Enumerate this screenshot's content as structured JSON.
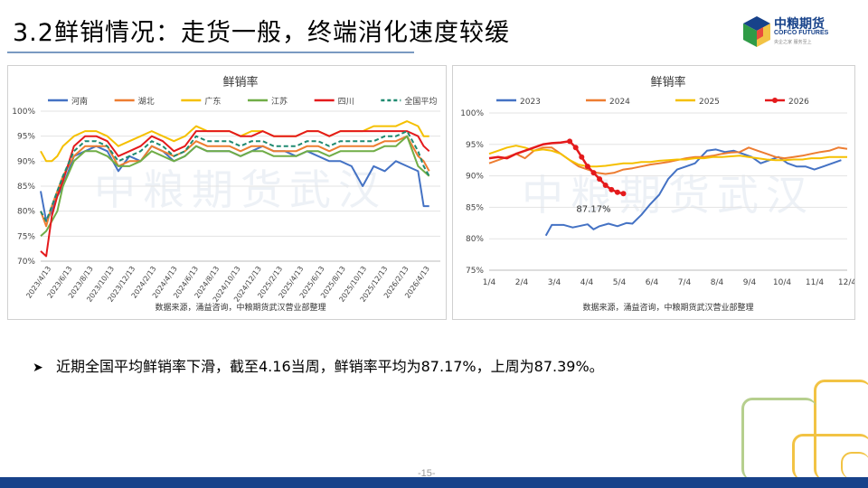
{
  "slide": {
    "title": "3.2鲜销情况：走货一般，终端消化速度较缓",
    "page_number": "-15-",
    "bullet": "近期全国平均鲜销率下滑，截至4.16当周，鲜销率平均为87.17%，上周为87.39%。"
  },
  "logo": {
    "cn": "中粮期货",
    "en": "COFCO FUTURES",
    "slogan": "央企之家 服务至上"
  },
  "colors": {
    "title_underline": "#7a9ac2",
    "bottom_bar": "#17428a",
    "deco_gold": "#f2c344",
    "deco_green": "#b6cf8e"
  },
  "watermark": "中粮期货武汉",
  "chart_data": [
    {
      "type": "line",
      "title": "鲜销率",
      "source": "数据来源，涌益咨询，中粮期货武汉营业部整理",
      "legend_position": "top",
      "ylim": [
        0.7,
        1.0
      ],
      "yticks": [
        "70%",
        "75%",
        "80%",
        "85%",
        "90%",
        "95%",
        "100%"
      ],
      "x_tick_labels": [
        "2023/4/13",
        "2023/6/13",
        "2023/8/13",
        "2023/10/13",
        "2023/12/13",
        "2024/2/13",
        "2024/4/13",
        "2024/6/13",
        "2024/8/13",
        "2024/10/13",
        "2024/12/13",
        "2025/2/13",
        "2025/4/13",
        "2025/6/13",
        "2025/8/13",
        "2025/10/13",
        "2025/12/13",
        "2026/2/13",
        "2026/4/13"
      ],
      "x_range": [
        0,
        36
      ],
      "series": [
        {
          "name": "河南",
          "color": "#4472c4",
          "dash": false,
          "x": [
            0,
            0.5,
            1,
            1.5,
            2,
            3,
            4,
            5,
            6,
            7,
            8,
            9,
            10,
            11,
            12,
            13,
            14,
            15,
            16,
            17,
            18,
            19,
            20,
            21,
            22,
            23,
            24,
            25,
            26,
            27,
            28,
            29,
            30,
            31,
            32,
            33,
            34,
            34.5,
            35
          ],
          "y": [
            0.84,
            0.78,
            0.8,
            0.83,
            0.85,
            0.91,
            0.92,
            0.93,
            0.92,
            0.88,
            0.91,
            0.9,
            0.93,
            0.92,
            0.9,
            0.91,
            0.93,
            0.92,
            0.92,
            0.92,
            0.91,
            0.92,
            0.93,
            0.92,
            0.92,
            0.91,
            0.92,
            0.91,
            0.9,
            0.9,
            0.89,
            0.85,
            0.89,
            0.88,
            0.9,
            0.89,
            0.88,
            0.81,
            0.81
          ]
        },
        {
          "name": "湖北",
          "color": "#ed7d31",
          "dash": false,
          "x": [
            0,
            0.5,
            1,
            1.5,
            2,
            3,
            4,
            5,
            6,
            7,
            8,
            9,
            10,
            11,
            12,
            13,
            14,
            15,
            16,
            17,
            18,
            19,
            20,
            21,
            22,
            23,
            24,
            25,
            26,
            27,
            28,
            29,
            30,
            31,
            32,
            33,
            34,
            34.5,
            35
          ],
          "y": [
            0.8,
            0.77,
            0.81,
            0.84,
            0.87,
            0.91,
            0.93,
            0.93,
            0.93,
            0.89,
            0.9,
            0.9,
            0.93,
            0.92,
            0.91,
            0.92,
            0.94,
            0.93,
            0.93,
            0.93,
            0.92,
            0.93,
            0.93,
            0.92,
            0.92,
            0.92,
            0.93,
            0.93,
            0.92,
            0.93,
            0.93,
            0.93,
            0.93,
            0.94,
            0.94,
            0.95,
            0.91,
            0.9,
            0.88
          ]
        },
        {
          "name": "广东",
          "color": "#f5c000",
          "dash": false,
          "x": [
            0,
            0.5,
            1,
            1.5,
            2,
            3,
            4,
            5,
            6,
            7,
            8,
            9,
            10,
            11,
            12,
            13,
            14,
            15,
            16,
            17,
            18,
            19,
            20,
            21,
            22,
            23,
            24,
            25,
            26,
            27,
            28,
            29,
            30,
            31,
            32,
            33,
            34,
            34.5,
            35
          ],
          "y": [
            0.92,
            0.9,
            0.9,
            0.91,
            0.93,
            0.95,
            0.96,
            0.96,
            0.95,
            0.93,
            0.94,
            0.95,
            0.96,
            0.95,
            0.94,
            0.95,
            0.97,
            0.96,
            0.96,
            0.96,
            0.95,
            0.96,
            0.96,
            0.95,
            0.95,
            0.95,
            0.96,
            0.96,
            0.95,
            0.96,
            0.96,
            0.96,
            0.97,
            0.97,
            0.97,
            0.98,
            0.97,
            0.95,
            0.95
          ]
        },
        {
          "name": "江苏",
          "color": "#70ad47",
          "dash": false,
          "x": [
            0,
            0.5,
            1,
            1.5,
            2,
            3,
            4,
            5,
            6,
            7,
            8,
            9,
            10,
            11,
            12,
            13,
            14,
            15,
            16,
            17,
            18,
            19,
            20,
            21,
            22,
            23,
            24,
            25,
            26,
            27,
            28,
            29,
            30,
            31,
            32,
            33,
            34,
            34.5,
            35
          ],
          "y": [
            0.75,
            0.76,
            0.78,
            0.8,
            0.85,
            0.9,
            0.92,
            0.92,
            0.91,
            0.89,
            0.89,
            0.9,
            0.92,
            0.91,
            0.9,
            0.91,
            0.93,
            0.92,
            0.92,
            0.92,
            0.91,
            0.92,
            0.92,
            0.91,
            0.91,
            0.91,
            0.92,
            0.92,
            0.91,
            0.92,
            0.92,
            0.92,
            0.92,
            0.93,
            0.93,
            0.95,
            0.89,
            0.88,
            0.87
          ]
        },
        {
          "name": "四川",
          "color": "#e41a1c",
          "dash": false,
          "x": [
            0,
            0.5,
            1,
            1.5,
            2,
            3,
            4,
            5,
            6,
            7,
            8,
            9,
            10,
            11,
            12,
            13,
            14,
            15,
            16,
            17,
            18,
            19,
            20,
            21,
            22,
            23,
            24,
            25,
            26,
            27,
            28,
            29,
            30,
            31,
            32,
            33,
            34,
            34.5,
            35
          ],
          "y": [
            0.72,
            0.71,
            0.79,
            0.83,
            0.86,
            0.93,
            0.95,
            0.95,
            0.94,
            0.91,
            0.92,
            0.93,
            0.95,
            0.94,
            0.92,
            0.93,
            0.96,
            0.96,
            0.96,
            0.96,
            0.95,
            0.95,
            0.96,
            0.95,
            0.95,
            0.95,
            0.96,
            0.96,
            0.95,
            0.96,
            0.96,
            0.96,
            0.96,
            0.96,
            0.96,
            0.96,
            0.95,
            0.93,
            0.92
          ]
        },
        {
          "name": "全国平均",
          "color": "#1f8a70",
          "dash": true,
          "x": [
            0,
            0.5,
            1,
            1.5,
            2,
            3,
            4,
            5,
            6,
            7,
            8,
            9,
            10,
            11,
            12,
            13,
            14,
            15,
            16,
            17,
            18,
            19,
            20,
            21,
            22,
            23,
            24,
            25,
            26,
            27,
            28,
            29,
            30,
            31,
            32,
            33,
            34,
            34.5,
            35
          ],
          "y": [
            0.8,
            0.78,
            0.81,
            0.84,
            0.87,
            0.92,
            0.94,
            0.94,
            0.93,
            0.9,
            0.91,
            0.92,
            0.94,
            0.93,
            0.91,
            0.92,
            0.95,
            0.94,
            0.94,
            0.94,
            0.93,
            0.94,
            0.94,
            0.93,
            0.93,
            0.93,
            0.94,
            0.94,
            0.93,
            0.94,
            0.94,
            0.94,
            0.94,
            0.95,
            0.95,
            0.96,
            0.92,
            0.89,
            0.87
          ]
        }
      ]
    },
    {
      "type": "line",
      "title": "鲜销率",
      "source": "数据来源，涌益咨询，中粮期货武汉营业部整理",
      "legend_position": "top",
      "ylim": [
        0.75,
        1.0
      ],
      "yticks": [
        "75%",
        "80%",
        "85%",
        "90%",
        "95%",
        "100%"
      ],
      "x_tick_labels": [
        "1/4",
        "2/4",
        "3/4",
        "4/4",
        "5/4",
        "6/4",
        "7/4",
        "8/4",
        "9/4",
        "10/4",
        "11/4",
        "12/4"
      ],
      "x_range": [
        0,
        12
      ],
      "annotation": {
        "text": "87.17%",
        "x": 3.5,
        "y": 0.8717
      },
      "series": [
        {
          "name": "2023",
          "color": "#4472c4",
          "marker": false,
          "x": [
            1.9,
            2.1,
            2.5,
            2.8,
            3.0,
            3.3,
            3.5,
            3.7,
            4.0,
            4.3,
            4.6,
            4.8,
            5.1,
            5.4,
            5.7,
            6.0,
            6.3,
            6.6,
            6.9,
            7.1,
            7.3,
            7.6,
            7.9,
            8.2,
            8.5,
            8.8,
            9.1,
            9.4,
            9.7,
            10.0,
            10.3,
            10.6,
            10.9,
            11.2,
            11.5,
            11.8
          ],
          "y": [
            0.805,
            0.822,
            0.822,
            0.818,
            0.82,
            0.823,
            0.815,
            0.82,
            0.824,
            0.82,
            0.825,
            0.824,
            0.838,
            0.855,
            0.87,
            0.895,
            0.91,
            0.915,
            0.92,
            0.93,
            0.94,
            0.942,
            0.938,
            0.94,
            0.935,
            0.93,
            0.92,
            0.925,
            0.93,
            0.92,
            0.915,
            0.915,
            0.91,
            0.915,
            0.92,
            0.925
          ]
        },
        {
          "name": "2024",
          "color": "#ed7d31",
          "marker": false,
          "x": [
            0,
            0.3,
            0.6,
            0.9,
            1.2,
            1.5,
            1.8,
            2.1,
            2.4,
            2.7,
            3.0,
            3.3,
            3.6,
            3.9,
            4.2,
            4.5,
            4.8,
            5.1,
            5.4,
            5.7,
            6.0,
            6.3,
            6.6,
            6.9,
            7.2,
            7.5,
            7.8,
            8.1,
            8.4,
            8.7,
            9.0,
            9.3,
            9.6,
            9.9,
            10.2,
            10.5,
            10.8,
            11.1,
            11.4,
            11.7,
            12.0
          ],
          "y": [
            0.92,
            0.925,
            0.93,
            0.935,
            0.928,
            0.94,
            0.945,
            0.945,
            0.935,
            0.925,
            0.915,
            0.91,
            0.905,
            0.903,
            0.905,
            0.91,
            0.912,
            0.915,
            0.918,
            0.92,
            0.922,
            0.925,
            0.928,
            0.93,
            0.93,
            0.932,
            0.935,
            0.937,
            0.938,
            0.945,
            0.94,
            0.935,
            0.93,
            0.928,
            0.93,
            0.932,
            0.935,
            0.938,
            0.94,
            0.945,
            0.943
          ]
        },
        {
          "name": "2025",
          "color": "#f5c000",
          "marker": false,
          "x": [
            0,
            0.3,
            0.6,
            0.9,
            1.2,
            1.5,
            1.8,
            2.1,
            2.4,
            2.7,
            3.0,
            3.3,
            3.6,
            3.9,
            4.2,
            4.5,
            4.8,
            5.1,
            5.4,
            5.7,
            6.0,
            6.3,
            6.6,
            6.9,
            7.2,
            7.5,
            7.8,
            8.1,
            8.4,
            8.7,
            9.0,
            9.3,
            9.6,
            9.9,
            10.2,
            10.5,
            10.8,
            11.1,
            11.4,
            11.7,
            12.0
          ],
          "y": [
            0.935,
            0.94,
            0.945,
            0.948,
            0.945,
            0.94,
            0.942,
            0.94,
            0.935,
            0.925,
            0.918,
            0.915,
            0.915,
            0.916,
            0.918,
            0.92,
            0.92,
            0.922,
            0.922,
            0.924,
            0.925,
            0.926,
            0.926,
            0.928,
            0.928,
            0.93,
            0.93,
            0.931,
            0.932,
            0.93,
            0.928,
            0.926,
            0.925,
            0.925,
            0.926,
            0.926,
            0.928,
            0.928,
            0.93,
            0.93,
            0.93
          ]
        },
        {
          "name": "2026",
          "color": "#e41a1c",
          "marker": true,
          "x": [
            0,
            0.3,
            0.6,
            0.9,
            1.2,
            1.5,
            1.8,
            2.1,
            2.4,
            2.7,
            2.9,
            3.1,
            3.3,
            3.5,
            3.7,
            3.9,
            4.1,
            4.3,
            4.5
          ],
          "y": [
            0.928,
            0.93,
            0.928,
            0.935,
            0.94,
            0.945,
            0.95,
            0.952,
            0.953,
            0.955,
            0.945,
            0.93,
            0.915,
            0.905,
            0.895,
            0.885,
            0.878,
            0.874,
            0.8717
          ]
        }
      ]
    }
  ]
}
